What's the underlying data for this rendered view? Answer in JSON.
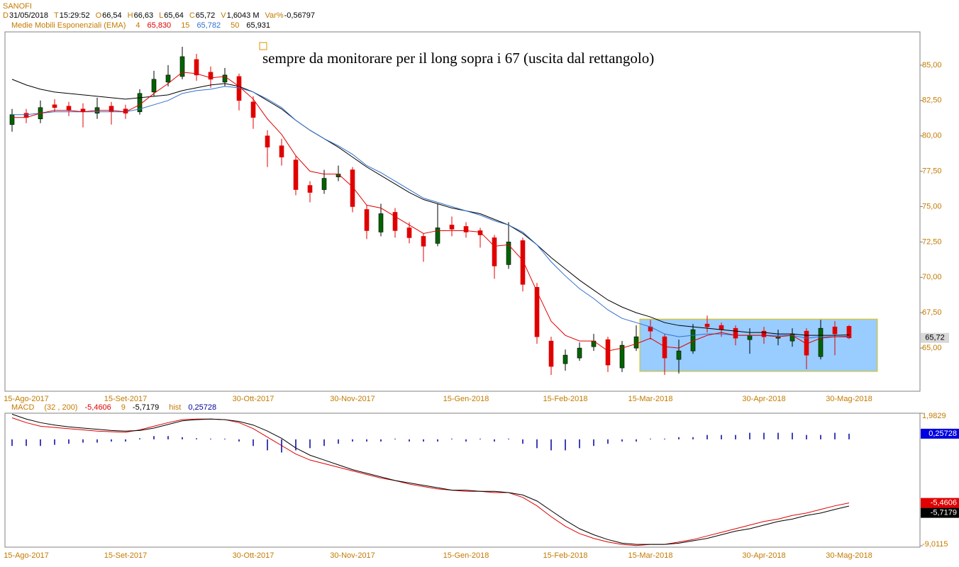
{
  "chart_data": [
    {
      "type": "candlestick",
      "title": "SANOFI",
      "header": [
        {
          "label": "D",
          "value": "31/05/2018"
        },
        {
          "label": "T",
          "value": "15:29:52"
        },
        {
          "label": "O",
          "value": "66,54"
        },
        {
          "label": "H",
          "value": "66,63"
        },
        {
          "label": "L",
          "value": "65,64"
        },
        {
          "label": "C",
          "value": "65,72"
        },
        {
          "label": "V",
          "value": "1,6043 M"
        },
        {
          "label": "Var%",
          "value": "-0,56797"
        }
      ],
      "legend_title": "Medie Mobili Esponenziali (EMA)",
      "annotation": "sempre da monitorare per il long sopra i 67 (uscita dal rettangolo)",
      "categories": [
        null,
        "15-Ago-2017",
        null,
        null,
        null,
        null,
        null,
        null,
        "15-Set-2017",
        null,
        null,
        null,
        null,
        null,
        null,
        null,
        null,
        "30-Ott-2017",
        null,
        null,
        null,
        null,
        null,
        null,
        "30-Nov-2017",
        null,
        null,
        null,
        null,
        null,
        null,
        null,
        "15-Gen-2018",
        null,
        null,
        null,
        null,
        null,
        null,
        "15-Feb-2018",
        null,
        null,
        null,
        null,
        null,
        "15-Mar-2018",
        null,
        null,
        null,
        null,
        null,
        null,
        null,
        "30-Apr-2018",
        null,
        null,
        null,
        null,
        null,
        "30-Mag-2018"
      ],
      "open": [
        80.8,
        81.6,
        81.2,
        82.2,
        82.1,
        81.9,
        81.6,
        82.1,
        81.9,
        81.7,
        83.1,
        83.8,
        84.2,
        85.4,
        84.5,
        83.8,
        84.2,
        82.4,
        80.0,
        79.3,
        78.3,
        76.5,
        76.2,
        77.1,
        77.6,
        74.8,
        73.2,
        74.6,
        73.5,
        72.9,
        72.4,
        73.7,
        73.6,
        73.3,
        72.8,
        70.9,
        72.6,
        69.3,
        65.5,
        63.9,
        64.3,
        65.1,
        65.6,
        63.6,
        65.0,
        66.5,
        65.8,
        64.2,
        64.8,
        66.7,
        66.6,
        66.4,
        65.6,
        66.2,
        65.7,
        65.5,
        66.2,
        64.4,
        66.5,
        66.54
      ],
      "high": [
        81.9,
        81.9,
        82.5,
        82.6,
        82.4,
        82.3,
        82.7,
        82.4,
        82.2,
        83.3,
        84.6,
        85.0,
        86.3,
        85.8,
        84.9,
        84.8,
        84.4,
        82.8,
        80.4,
        79.8,
        78.6,
        76.8,
        77.6,
        77.9,
        77.8,
        75.1,
        75.2,
        74.9,
        73.9,
        73.1,
        75.2,
        74.3,
        73.9,
        73.5,
        73.0,
        73.9,
        72.8,
        69.6,
        65.8,
        64.9,
        65.4,
        66.0,
        65.8,
        65.5,
        66.6,
        67.0,
        66.0,
        65.6,
        66.7,
        67.3,
        66.8,
        66.6,
        66.4,
        66.5,
        66.3,
        66.4,
        66.4,
        67.0,
        66.9,
        66.63
      ],
      "low": [
        80.3,
        80.9,
        80.9,
        81.7,
        81.4,
        80.6,
        81.2,
        80.8,
        81.2,
        81.5,
        82.8,
        83.5,
        84.0,
        83.9,
        83.4,
        83.5,
        81.8,
        80.5,
        77.8,
        77.9,
        75.8,
        75.3,
        75.9,
        76.8,
        74.6,
        72.7,
        72.9,
        72.8,
        72.4,
        71.1,
        72.2,
        72.9,
        72.8,
        72.1,
        69.9,
        70.6,
        69.0,
        65.3,
        63.1,
        63.4,
        64.1,
        64.8,
        63.3,
        63.3,
        64.8,
        65.6,
        63.1,
        63.2,
        64.6,
        66.1,
        65.8,
        65.2,
        64.6,
        65.3,
        65.2,
        65.1,
        63.5,
        64.2,
        64.5,
        65.64
      ],
      "close": [
        81.5,
        81.3,
        82.0,
        82.0,
        81.8,
        81.7,
        82.0,
        81.7,
        81.6,
        83.0,
        84.0,
        84.3,
        85.6,
        84.3,
        84.0,
        84.3,
        82.5,
        81.3,
        79.2,
        78.5,
        76.2,
        76.0,
        77.0,
        77.3,
        75.0,
        73.3,
        74.5,
        73.3,
        72.8,
        72.2,
        73.5,
        73.4,
        73.2,
        73.0,
        70.8,
        72.5,
        69.5,
        65.8,
        63.7,
        64.5,
        65.0,
        65.5,
        63.8,
        65.2,
        65.8,
        66.2,
        64.3,
        64.8,
        66.3,
        66.5,
        66.3,
        65.7,
        65.9,
        65.8,
        65.8,
        66.0,
        64.5,
        66.4,
        66.0,
        65.72
      ],
      "last_label": "65,72",
      "up_color": "#006400",
      "down_color": "#e00000",
      "series": [
        {
          "name": "4",
          "color": "#e00000",
          "legend_value": "65,830",
          "values": [
            81.3,
            81.3,
            81.6,
            81.8,
            81.8,
            81.7,
            81.8,
            81.8,
            81.7,
            82.2,
            83.0,
            83.7,
            84.5,
            84.4,
            84.1,
            84.2,
            83.5,
            82.6,
            81.2,
            80.1,
            78.6,
            77.5,
            77.3,
            77.3,
            76.4,
            75.1,
            74.9,
            74.3,
            73.7,
            73.1,
            73.3,
            73.3,
            73.3,
            73.2,
            72.2,
            72.3,
            71.2,
            69.0,
            66.9,
            65.9,
            65.5,
            65.5,
            64.8,
            65.0,
            65.3,
            65.7,
            65.1,
            65.0,
            65.5,
            65.9,
            66.1,
            65.9,
            65.9,
            65.9,
            65.8,
            65.9,
            65.3,
            65.7,
            65.8,
            65.83
          ]
        },
        {
          "name": "15",
          "color": "#3070d0",
          "legend_value": "65,782",
          "values": [
            81.5,
            81.5,
            81.6,
            81.7,
            81.7,
            81.7,
            81.7,
            81.7,
            81.7,
            81.9,
            82.2,
            82.5,
            83.0,
            83.2,
            83.3,
            83.5,
            83.4,
            83.1,
            82.6,
            82.0,
            81.1,
            80.4,
            79.8,
            79.3,
            78.7,
            77.9,
            77.4,
            76.8,
            76.2,
            75.6,
            75.3,
            75.0,
            74.7,
            74.4,
            74.0,
            73.7,
            73.2,
            72.3,
            71.1,
            70.1,
            69.2,
            68.5,
            67.7,
            67.1,
            66.8,
            66.5,
            66.0,
            65.8,
            65.9,
            66.0,
            66.0,
            65.9,
            65.9,
            65.9,
            65.9,
            65.9,
            65.7,
            65.8,
            65.8,
            65.78
          ]
        },
        {
          "name": "50",
          "color": "#000000",
          "legend_value": "65,931",
          "values": [
            84.0,
            83.6,
            83.3,
            83.1,
            83.0,
            82.9,
            82.8,
            82.7,
            82.6,
            82.7,
            82.8,
            82.9,
            83.2,
            83.4,
            83.6,
            83.7,
            83.5,
            83.1,
            82.5,
            81.9,
            81.1,
            80.4,
            79.8,
            79.2,
            78.5,
            77.8,
            77.2,
            76.6,
            76.0,
            75.5,
            75.2,
            74.9,
            74.7,
            74.5,
            74.1,
            73.7,
            73.1,
            72.3,
            71.4,
            70.6,
            69.8,
            69.1,
            68.4,
            67.9,
            67.5,
            67.2,
            66.8,
            66.6,
            66.5,
            66.4,
            66.3,
            66.2,
            66.1,
            66.1,
            66.0,
            66.0,
            65.9,
            65.9,
            65.9,
            65.93
          ]
        }
      ],
      "rectangle": {
        "ylim": [
          63.35,
          67.05
        ],
        "color": "#99ccff",
        "border": "#e0c000"
      },
      "ylim": [
        61.95,
        87.35
      ],
      "yticks": [
        {
          "value": 65,
          "label": "65,00"
        },
        {
          "value": 67.5,
          "label": "67,50"
        },
        {
          "value": 70,
          "label": "70,00"
        },
        {
          "value": 72.5,
          "label": "72,50"
        },
        {
          "value": 75,
          "label": "75,00"
        },
        {
          "value": 77.5,
          "label": "77,50"
        },
        {
          "value": 80,
          "label": "80,00"
        },
        {
          "value": 82.5,
          "label": "82,50"
        },
        {
          "value": 85,
          "label": "85,00"
        }
      ]
    },
    {
      "type": "line",
      "title": "MACD",
      "categories": [
        null,
        "15-Ago-2017",
        null,
        null,
        null,
        null,
        null,
        null,
        "15-Set-2017",
        null,
        null,
        null,
        null,
        null,
        null,
        null,
        null,
        "30-Ott-2017",
        null,
        null,
        null,
        null,
        null,
        null,
        "30-Nov-2017",
        null,
        null,
        null,
        null,
        null,
        null,
        null,
        "15-Gen-2018",
        null,
        null,
        null,
        null,
        null,
        null,
        "15-Feb-2018",
        null,
        null,
        null,
        null,
        null,
        "15-Mar-2018",
        null,
        null,
        null,
        null,
        null,
        null,
        null,
        "30-Apr-2018",
        null,
        null,
        null,
        null,
        null,
        "30-Mag-2018"
      ],
      "series": [
        {
          "name": "(32 , 200)",
          "color": "#e00000",
          "last_label": "-5,4606",
          "values": [
            1.6,
            1.2,
            0.9,
            0.8,
            0.7,
            0.6,
            0.5,
            0.45,
            0.4,
            0.6,
            0.9,
            1.2,
            1.45,
            1.5,
            1.5,
            1.45,
            1.2,
            0.7,
            0.0,
            -0.7,
            -1.4,
            -1.9,
            -2.2,
            -2.5,
            -2.8,
            -3.1,
            -3.4,
            -3.6,
            -3.9,
            -4.1,
            -4.3,
            -4.4,
            -4.5,
            -4.5,
            -4.6,
            -4.6,
            -5.0,
            -5.7,
            -6.6,
            -7.4,
            -8.0,
            -8.4,
            -8.7,
            -8.9,
            -9.0,
            -8.9,
            -8.9,
            -8.7,
            -8.5,
            -8.2,
            -7.9,
            -7.6,
            -7.3,
            -7.0,
            -6.8,
            -6.5,
            -6.3,
            -6.0,
            -5.7,
            -5.4606
          ]
        },
        {
          "name": "9",
          "color": "#000000",
          "last_label": "-5,7179",
          "values": [
            1.9,
            1.5,
            1.2,
            1.0,
            0.85,
            0.75,
            0.65,
            0.55,
            0.5,
            0.55,
            0.75,
            1.05,
            1.35,
            1.45,
            1.5,
            1.45,
            1.3,
            1.0,
            0.5,
            -0.1,
            -0.9,
            -1.5,
            -1.9,
            -2.3,
            -2.7,
            -3.0,
            -3.3,
            -3.6,
            -3.8,
            -4.0,
            -4.2,
            -4.4,
            -4.4,
            -4.5,
            -4.5,
            -4.6,
            -4.8,
            -5.3,
            -6.1,
            -6.9,
            -7.6,
            -8.1,
            -8.5,
            -8.8,
            -8.9,
            -8.9,
            -8.9,
            -8.8,
            -8.6,
            -8.4,
            -8.1,
            -7.8,
            -7.6,
            -7.3,
            -7.0,
            -6.8,
            -6.5,
            -6.3,
            -6.0,
            -5.7179
          ]
        },
        {
          "name": "hist",
          "color": "#0000a0",
          "axis": "y2",
          "last_label": "0,25728",
          "values": [
            -0.3,
            -0.3,
            -0.3,
            -0.25,
            -0.2,
            -0.15,
            -0.15,
            -0.1,
            -0.1,
            0.05,
            0.15,
            0.15,
            0.1,
            0.05,
            0.0,
            0.0,
            -0.1,
            -0.3,
            -0.5,
            -0.6,
            -0.5,
            -0.4,
            -0.3,
            -0.2,
            -0.1,
            -0.1,
            -0.1,
            0.0,
            -0.1,
            -0.1,
            -0.1,
            0.0,
            -0.1,
            0.0,
            -0.1,
            0.0,
            -0.2,
            -0.4,
            -0.5,
            -0.5,
            -0.4,
            -0.3,
            -0.2,
            -0.1,
            -0.1,
            0.0,
            0.0,
            0.1,
            0.1,
            0.2,
            0.2,
            0.2,
            0.3,
            0.3,
            0.3,
            0.3,
            0.2,
            0.2,
            0.3,
            0.25728
          ]
        }
      ],
      "ylim": [
        -9.0115,
        1.9829
      ],
      "yticks": [
        {
          "value": -9.0115,
          "label": "-9,0115"
        },
        {
          "value": 1.9829,
          "label": "1,9829"
        }
      ],
      "y2lim": [
        -4.84,
        1.19
      ]
    }
  ]
}
